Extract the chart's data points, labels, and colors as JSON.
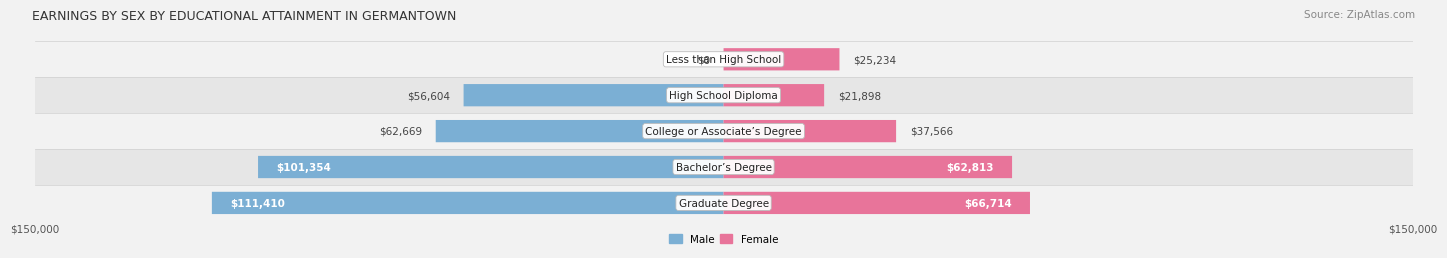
{
  "title": "EARNINGS BY SEX BY EDUCATIONAL ATTAINMENT IN GERMANTOWN",
  "source": "Source: ZipAtlas.com",
  "categories": [
    "Less than High School",
    "High School Diploma",
    "College or Associate’s Degree",
    "Bachelor’s Degree",
    "Graduate Degree"
  ],
  "male_values": [
    0,
    56604,
    62669,
    101354,
    111410
  ],
  "female_values": [
    25234,
    21898,
    37566,
    62813,
    66714
  ],
  "male_color": "#7bafd4",
  "female_color": "#e8749a",
  "row_bg_light": "#f2f2f2",
  "row_bg_dark": "#e6e6e6",
  "row_separator": "#d0d0d0",
  "max_value": 150000,
  "xlabel_left": "$150,000",
  "xlabel_right": "$150,000",
  "title_fontsize": 9.0,
  "source_fontsize": 7.5,
  "label_fontsize": 7.5,
  "category_fontsize": 7.5
}
